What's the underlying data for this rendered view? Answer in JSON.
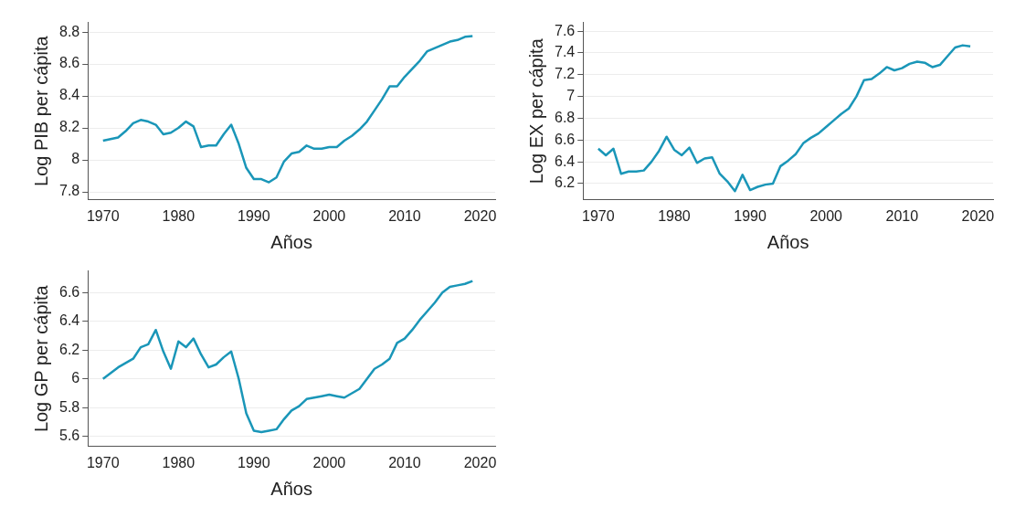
{
  "chart_data": [
    {
      "type": "line",
      "xlabel": "Años",
      "ylabel": "Log PIB per cápita",
      "grid": "y",
      "xlim": [
        1968,
        2022
      ],
      "xticks": [
        1970,
        1980,
        1990,
        2000,
        2010,
        2020
      ],
      "ylim": [
        7.75,
        8.86
      ],
      "yticks": [
        7.8,
        8,
        8.2,
        8.4,
        8.6,
        8.8
      ],
      "x": [
        1970,
        1971,
        1972,
        1973,
        1974,
        1975,
        1976,
        1977,
        1978,
        1979,
        1980,
        1981,
        1982,
        1983,
        1984,
        1985,
        1986,
        1987,
        1988,
        1989,
        1990,
        1991,
        1992,
        1993,
        1994,
        1995,
        1996,
        1997,
        1998,
        1999,
        2000,
        2001,
        2002,
        2003,
        2004,
        2005,
        2006,
        2007,
        2008,
        2009,
        2010,
        2011,
        2012,
        2013,
        2014,
        2015,
        2016,
        2017,
        2018,
        2019
      ],
      "series": [
        {
          "color": "#1a96b8",
          "values": [
            8.12,
            8.13,
            8.14,
            8.18,
            8.23,
            8.25,
            8.24,
            8.22,
            8.16,
            8.17,
            8.2,
            8.24,
            8.21,
            8.08,
            8.09,
            8.09,
            8.16,
            8.22,
            8.1,
            7.95,
            7.88,
            7.88,
            7.86,
            7.89,
            7.99,
            8.04,
            8.05,
            8.09,
            8.07,
            8.07,
            8.08,
            8.08,
            8.12,
            8.15,
            8.19,
            8.24,
            8.31,
            8.38,
            8.46,
            8.46,
            8.52,
            8.57,
            8.62,
            8.68,
            8.7,
            8.72,
            8.74,
            8.75,
            8.77,
            8.775
          ]
        }
      ]
    },
    {
      "type": "line",
      "xlabel": "Años",
      "ylabel": "Log EX per cápita",
      "grid": "y",
      "xlim": [
        1968,
        2022
      ],
      "xticks": [
        1970,
        1980,
        1990,
        2000,
        2010,
        2020
      ],
      "ylim": [
        6.05,
        7.68
      ],
      "yticks": [
        6.2,
        6.4,
        6.6,
        6.8,
        7,
        7.2,
        7.4,
        7.6
      ],
      "x": [
        1970,
        1971,
        1972,
        1973,
        1974,
        1975,
        1976,
        1977,
        1978,
        1979,
        1980,
        1981,
        1982,
        1983,
        1984,
        1985,
        1986,
        1987,
        1988,
        1989,
        1990,
        1991,
        1992,
        1993,
        1994,
        1995,
        1996,
        1997,
        1998,
        1999,
        2000,
        2001,
        2002,
        2003,
        2004,
        2005,
        2006,
        2007,
        2008,
        2009,
        2010,
        2011,
        2012,
        2013,
        2014,
        2015,
        2016,
        2017,
        2018,
        2019
      ],
      "series": [
        {
          "color": "#1a96b8",
          "values": [
            6.52,
            6.46,
            6.52,
            6.29,
            6.31,
            6.31,
            6.32,
            6.4,
            6.5,
            6.63,
            6.51,
            6.46,
            6.53,
            6.39,
            6.43,
            6.44,
            6.29,
            6.22,
            6.13,
            6.28,
            6.14,
            6.17,
            6.19,
            6.2,
            6.36,
            6.41,
            6.47,
            6.57,
            6.62,
            6.66,
            6.72,
            6.78,
            6.84,
            6.89,
            7.0,
            7.15,
            7.16,
            7.21,
            7.27,
            7.24,
            7.26,
            7.3,
            7.32,
            7.31,
            7.27,
            7.29,
            7.37,
            7.45,
            7.47,
            7.46
          ]
        }
      ]
    },
    {
      "type": "line",
      "xlabel": "Años",
      "ylabel": "Log GP per cápita",
      "grid": "y",
      "xlim": [
        1968,
        2022
      ],
      "xticks": [
        1970,
        1980,
        1990,
        2000,
        2010,
        2020
      ],
      "ylim": [
        5.53,
        6.75
      ],
      "yticks": [
        5.6,
        5.8,
        6,
        6.2,
        6.4,
        6.6
      ],
      "x": [
        1970,
        1971,
        1972,
        1973,
        1974,
        1975,
        1976,
        1977,
        1978,
        1979,
        1980,
        1981,
        1982,
        1983,
        1984,
        1985,
        1986,
        1987,
        1988,
        1989,
        1990,
        1991,
        1992,
        1993,
        1994,
        1995,
        1996,
        1997,
        1998,
        1999,
        2000,
        2001,
        2002,
        2003,
        2004,
        2005,
        2006,
        2007,
        2008,
        2009,
        2010,
        2011,
        2012,
        2013,
        2014,
        2015,
        2016,
        2017,
        2018,
        2019
      ],
      "series": [
        {
          "color": "#1a96b8",
          "values": [
            6.0,
            6.04,
            6.08,
            6.11,
            6.14,
            6.22,
            6.24,
            6.34,
            6.19,
            6.07,
            6.26,
            6.22,
            6.28,
            6.17,
            6.08,
            6.1,
            6.15,
            6.19,
            6.0,
            5.76,
            5.64,
            5.63,
            5.64,
            5.65,
            5.72,
            5.78,
            5.81,
            5.86,
            5.87,
            5.88,
            5.89,
            5.88,
            5.87,
            5.9,
            5.93,
            6.0,
            6.07,
            6.1,
            6.14,
            6.25,
            6.28,
            6.34,
            6.41,
            6.47,
            6.53,
            6.6,
            6.64,
            6.65,
            6.66,
            6.68
          ]
        }
      ]
    }
  ]
}
